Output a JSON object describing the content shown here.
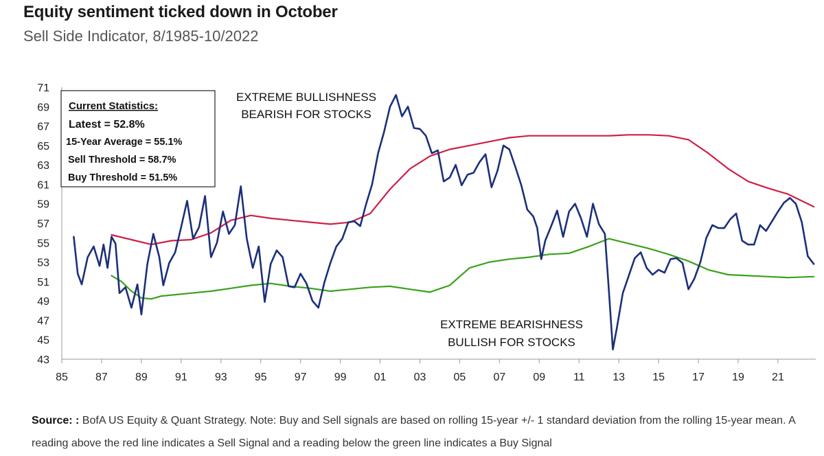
{
  "title": "Equity sentiment ticked down in October",
  "subtitle": "Sell Side Indicator, 8/1985-10/2022",
  "source": {
    "label": "Source: :",
    "text": "BofA US Equity & Quant Strategy. Note: Buy and Sell signals are based on rolling 15-year +/- 1 standard deviation from the rolling 15-year mean. A reading above the red line indicates a Sell Signal and a reading below the green line indicates a Buy Signal"
  },
  "chart_data": {
    "type": "line",
    "xlim": [
      1985,
      2022.9
    ],
    "ylim": [
      43,
      71
    ],
    "x_ticks": [
      {
        "value": 1985,
        "label": "85"
      },
      {
        "value": 1987,
        "label": "87"
      },
      {
        "value": 1989,
        "label": "89"
      },
      {
        "value": 1991,
        "label": "91"
      },
      {
        "value": 1993,
        "label": "93"
      },
      {
        "value": 1995,
        "label": "95"
      },
      {
        "value": 1997,
        "label": "97"
      },
      {
        "value": 1999,
        "label": "99"
      },
      {
        "value": 2001,
        "label": "01"
      },
      {
        "value": 2003,
        "label": "03"
      },
      {
        "value": 2005,
        "label": "05"
      },
      {
        "value": 2007,
        "label": "07"
      },
      {
        "value": 2009,
        "label": "09"
      },
      {
        "value": 2011,
        "label": "11"
      },
      {
        "value": 2013,
        "label": "13"
      },
      {
        "value": 2015,
        "label": "15"
      },
      {
        "value": 2017,
        "label": "17"
      },
      {
        "value": 2019,
        "label": "19"
      },
      {
        "value": 2021,
        "label": "21"
      }
    ],
    "y_ticks": [
      43,
      45,
      47,
      49,
      51,
      53,
      55,
      57,
      59,
      61,
      63,
      65,
      67,
      69,
      71
    ],
    "stats_box": {
      "heading": "Current Statistics:",
      "latest": "Latest = 52.8%",
      "average": "15-Year Average = 55.1%",
      "sell": "Sell Threshold = 58.7%",
      "buy": "Buy Threshold = 51.5%"
    },
    "annotations": {
      "bullish_line1": "EXTREME BULLISHNESS",
      "bullish_line2": "BEARISH FOR STOCKS",
      "bearish_line1": "EXTREME BEARISHNESS",
      "bearish_line2": "BULLISH FOR STOCKS"
    },
    "colors": {
      "indicator": "#1b2f7a",
      "sell": "#d01f45",
      "buy": "#3aa11b"
    },
    "series": [
      {
        "key": "indicator",
        "x": [
          1985.6,
          1985.8,
          1986.0,
          1986.3,
          1986.6,
          1986.9,
          1987.1,
          1987.3,
          1987.5,
          1987.7,
          1987.9,
          1988.2,
          1988.5,
          1988.8,
          1989.0,
          1989.3,
          1989.6,
          1989.9,
          1990.1,
          1990.4,
          1990.7,
          1991.0,
          1991.3,
          1991.6,
          1991.9,
          1992.2,
          1992.5,
          1992.8,
          1993.1,
          1993.4,
          1993.7,
          1994.0,
          1994.3,
          1994.6,
          1994.9,
          1995.2,
          1995.5,
          1995.8,
          1996.1,
          1996.4,
          1996.7,
          1997.0,
          1997.3,
          1997.6,
          1997.9,
          1998.2,
          1998.5,
          1998.8,
          1999.1,
          1999.4,
          1999.7,
          2000.0,
          2000.3,
          2000.6,
          2000.9,
          2001.2,
          2001.5,
          2001.8,
          2002.1,
          2002.4,
          2002.7,
          2003.0,
          2003.3,
          2003.6,
          2003.9,
          2004.2,
          2004.5,
          2004.8,
          2005.1,
          2005.4,
          2005.7,
          2006.0,
          2006.3,
          2006.6,
          2006.9,
          2007.2,
          2007.5,
          2007.8,
          2008.1,
          2008.4,
          2008.7,
          2008.9,
          2009.1,
          2009.3,
          2009.6,
          2009.9,
          2010.2,
          2010.5,
          2010.8,
          2011.1,
          2011.4,
          2011.7,
          2012.0,
          2012.3,
          2012.5,
          2012.7,
          2012.9,
          2013.2,
          2013.5,
          2013.8,
          2014.1,
          2014.4,
          2014.7,
          2015.0,
          2015.3,
          2015.6,
          2015.9,
          2016.2,
          2016.5,
          2016.8,
          2017.1,
          2017.4,
          2017.7,
          2018.0,
          2018.3,
          2018.6,
          2018.9,
          2019.2,
          2019.5,
          2019.8,
          2020.1,
          2020.4,
          2020.7,
          2021.0,
          2021.3,
          2021.6,
          2021.9,
          2022.2,
          2022.5,
          2022.8
        ],
        "y": [
          55.6,
          51.8,
          50.7,
          53.5,
          54.6,
          52.6,
          54.8,
          52.4,
          55.6,
          54.9,
          49.8,
          50.4,
          48.3,
          50.7,
          47.6,
          52.8,
          55.9,
          53.5,
          50.6,
          52.9,
          54.0,
          56.6,
          59.3,
          55.4,
          56.6,
          59.8,
          53.5,
          55.0,
          58.2,
          55.9,
          56.8,
          60.8,
          55.4,
          52.4,
          54.6,
          48.9,
          52.8,
          54.2,
          53.5,
          50.5,
          50.4,
          51.8,
          50.8,
          49.0,
          48.3,
          50.9,
          52.9,
          54.6,
          55.4,
          57.1,
          57.2,
          56.7,
          59.0,
          61.0,
          64.2,
          66.4,
          69.0,
          70.2,
          68.0,
          69.0,
          66.8,
          66.7,
          66.0,
          64.2,
          64.5,
          61.3,
          61.7,
          63.0,
          60.9,
          62.0,
          62.2,
          63.3,
          64.1,
          60.7,
          62.4,
          65.0,
          64.6,
          62.8,
          60.9,
          58.4,
          57.7,
          56.5,
          53.3,
          55.2,
          56.7,
          58.3,
          55.6,
          58.2,
          59.0,
          57.5,
          55.6,
          59.0,
          56.9,
          55.9,
          50.1,
          44.0,
          46.2,
          49.8,
          51.6,
          53.4,
          54.0,
          52.4,
          51.7,
          52.2,
          51.9,
          53.3,
          53.4,
          52.9,
          50.2,
          51.3,
          53.0,
          55.5,
          56.8,
          56.5,
          56.5,
          57.4,
          58.0,
          55.2,
          54.8,
          54.8,
          56.8,
          56.2,
          57.2,
          58.2,
          59.1,
          59.6,
          59.0,
          57.1,
          53.6,
          52.8
        ]
      },
      {
        "key": "sell",
        "x": [
          1987.5,
          1988.5,
          1989.5,
          1990.5,
          1991.5,
          1992.5,
          1993.5,
          1994.5,
          1995.5,
          1996.5,
          1997.5,
          1998.5,
          1999.5,
          2000.5,
          2001.5,
          2002.5,
          2003.5,
          2004.5,
          2005.5,
          2006.5,
          2007.5,
          2008.5,
          2009.5,
          2010.5,
          2011.5,
          2012.5,
          2013.5,
          2014.5,
          2015.5,
          2016.5,
          2017.5,
          2018.5,
          2019.5,
          2020.5,
          2021.5,
          2022.8
        ],
        "y": [
          55.8,
          55.3,
          54.8,
          55.2,
          55.3,
          56.0,
          57.3,
          57.8,
          57.5,
          57.3,
          57.1,
          56.9,
          57.1,
          58.0,
          60.5,
          62.6,
          63.9,
          64.6,
          65.0,
          65.4,
          65.8,
          66.0,
          66.0,
          66.0,
          66.0,
          66.0,
          66.1,
          66.1,
          66.0,
          65.6,
          64.2,
          62.6,
          61.3,
          60.6,
          60.0,
          58.7
        ]
      },
      {
        "key": "buy",
        "x": [
          1987.5,
          1988.0,
          1988.5,
          1989.0,
          1989.5,
          1990.0,
          1990.5,
          1991.5,
          1992.5,
          1993.5,
          1994.5,
          1995.5,
          1996.5,
          1997.5,
          1998.5,
          1999.5,
          2000.5,
          2001.5,
          2002.5,
          2003.5,
          2004.5,
          2005.5,
          2006.5,
          2007.5,
          2008.5,
          2009.5,
          2010.5,
          2011.5,
          2012.5,
          2013.5,
          2014.5,
          2015.5,
          2016.5,
          2017.5,
          2018.5,
          2019.5,
          2020.5,
          2021.5,
          2022.8
        ],
        "y": [
          51.6,
          51.0,
          50.0,
          49.3,
          49.2,
          49.5,
          49.6,
          49.8,
          50.0,
          50.3,
          50.6,
          50.8,
          50.5,
          50.3,
          50.0,
          50.2,
          50.4,
          50.5,
          50.2,
          49.9,
          50.6,
          52.4,
          53.0,
          53.3,
          53.5,
          53.8,
          53.9,
          54.6,
          55.4,
          54.9,
          54.4,
          53.8,
          53.1,
          52.2,
          51.7,
          51.6,
          51.5,
          51.4,
          51.5
        ]
      }
    ]
  }
}
